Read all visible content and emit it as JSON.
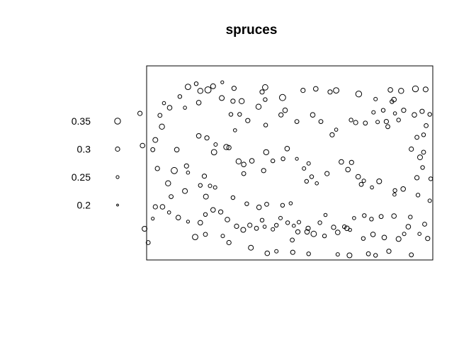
{
  "chart_data": {
    "type": "scatter",
    "title": "spruces",
    "xlim": [
      0,
      56
    ],
    "ylim": [
      0,
      38
    ],
    "stroke_color": "#000000",
    "background": "#ffffff",
    "legend": {
      "placement": "left",
      "entries": [
        {
          "label": "0.35",
          "value": 0.35
        },
        {
          "label": "0.3",
          "value": 0.3
        },
        {
          "label": "0.25",
          "value": 0.25
        },
        {
          "label": "0.2",
          "value": 0.2
        }
      ]
    },
    "points": [
      [
        9.7,
        34.5,
        0.28
      ],
      [
        10.5,
        33.1,
        0.33
      ],
      [
        12.0,
        33.3,
        0.36
      ],
      [
        13.0,
        34.0,
        0.32
      ],
      [
        14.8,
        34.8,
        0.25
      ],
      [
        17.1,
        33.6,
        0.3
      ],
      [
        18.6,
        31.1,
        0.33
      ],
      [
        22.6,
        32.9,
        0.3
      ],
      [
        23.2,
        33.8,
        0.34
      ],
      [
        26.6,
        31.8,
        0.36
      ],
      [
        30.6,
        33.2,
        0.3
      ],
      [
        33.1,
        33.5,
        0.31
      ],
      [
        35.9,
        32.9,
        0.3
      ],
      [
        37.1,
        33.2,
        0.34
      ],
      [
        41.5,
        32.5,
        0.35
      ],
      [
        6.5,
        32.0,
        0.28
      ],
      [
        8.1,
        33.9,
        0.34
      ],
      [
        10.2,
        30.8,
        0.31
      ],
      [
        14.7,
        31.7,
        0.32
      ],
      [
        16.9,
        31.1,
        0.3
      ],
      [
        16.5,
        28.5,
        0.28
      ],
      [
        18.2,
        28.5,
        0.28
      ],
      [
        19.8,
        27.3,
        0.3
      ],
      [
        21.9,
        30.0,
        0.33
      ],
      [
        23.2,
        31.4,
        0.28
      ],
      [
        23.3,
        26.4,
        0.28
      ],
      [
        27.1,
        29.3,
        0.31
      ],
      [
        26.3,
        28.4,
        0.3
      ],
      [
        29.4,
        27.1,
        0.29
      ],
      [
        32.5,
        28.4,
        0.31
      ],
      [
        34.1,
        27.1,
        0.29
      ],
      [
        36.3,
        24.5,
        0.3
      ],
      [
        37.1,
        25.5,
        0.26
      ],
      [
        40.9,
        26.9,
        0.3
      ],
      [
        42.8,
        26.8,
        0.29
      ],
      [
        47.7,
        33.3,
        0.31
      ],
      [
        48.4,
        31.4,
        0.31
      ],
      [
        49.8,
        33.1,
        0.33
      ],
      [
        52.6,
        33.5,
        0.35
      ],
      [
        54.6,
        33.4,
        0.32
      ],
      [
        53.9,
        29.1,
        0.3
      ],
      [
        52.4,
        28.4,
        0.31
      ],
      [
        55.4,
        28.5,
        0.28
      ],
      [
        54.7,
        26.3,
        0.29
      ],
      [
        47.2,
        26.1,
        0.29
      ],
      [
        46.3,
        29.3,
        0.28
      ],
      [
        46.9,
        27.1,
        0.3
      ],
      [
        48.6,
        28.7,
        0.26
      ],
      [
        50.3,
        29.3,
        0.3
      ],
      [
        48.0,
        31.0,
        0.28
      ],
      [
        44.4,
        28.9,
        0.27
      ],
      [
        45.2,
        27.0,
        0.27
      ],
      [
        40.0,
        27.4,
        0.28
      ],
      [
        44.8,
        31.5,
        0.27
      ],
      [
        49.3,
        27.4,
        0.28
      ],
      [
        4.5,
        29.8,
        0.31
      ],
      [
        2.6,
        28.3,
        0.29
      ],
      [
        3.0,
        26.1,
        0.33
      ],
      [
        3.4,
        30.7,
        0.26
      ],
      [
        7.5,
        29.8,
        0.26
      ],
      [
        -1.3,
        28.7,
        0.3
      ],
      [
        -0.8,
        22.4,
        0.31
      ],
      [
        1.7,
        23.5,
        0.32
      ],
      [
        1.2,
        21.6,
        0.29
      ],
      [
        2.1,
        17.9,
        0.3
      ],
      [
        4.2,
        15.0,
        0.33
      ],
      [
        5.4,
        17.5,
        0.36
      ],
      [
        7.8,
        18.4,
        0.3
      ],
      [
        8.1,
        17.1,
        0.26
      ],
      [
        11.6,
        12.4,
        0.32
      ],
      [
        12.4,
        14.5,
        0.27
      ],
      [
        13.4,
        14.2,
        0.27
      ],
      [
        13.2,
        21.1,
        0.34
      ],
      [
        16.1,
        22.0,
        0.3
      ],
      [
        17.3,
        25.4,
        0.26
      ],
      [
        18.0,
        19.3,
        0.33
      ],
      [
        19.0,
        18.7,
        0.31
      ],
      [
        19.0,
        16.9,
        0.29
      ],
      [
        20.6,
        19.4,
        0.31
      ],
      [
        22.9,
        17.5,
        0.3
      ],
      [
        23.4,
        21.1,
        0.33
      ],
      [
        24.7,
        19.4,
        0.28
      ],
      [
        26.7,
        19.8,
        0.28
      ],
      [
        27.5,
        21.8,
        0.31
      ],
      [
        29.4,
        19.8,
        0.25
      ],
      [
        30.8,
        17.9,
        0.27
      ],
      [
        31.7,
        18.9,
        0.27
      ],
      [
        31.3,
        15.4,
        0.28
      ],
      [
        32.3,
        16.3,
        0.28
      ],
      [
        33.3,
        15.0,
        0.26
      ],
      [
        35.3,
        16.9,
        0.3
      ],
      [
        38.1,
        19.2,
        0.31
      ],
      [
        39.4,
        17.7,
        0.31
      ],
      [
        40.1,
        19.1,
        0.3
      ],
      [
        41.4,
        16.3,
        0.31
      ],
      [
        42.0,
        14.8,
        0.29
      ],
      [
        42.5,
        15.5,
        0.27
      ],
      [
        44.1,
        14.2,
        0.26
      ],
      [
        45.5,
        15.4,
        0.32
      ],
      [
        48.6,
        13.6,
        0.28
      ],
      [
        48.5,
        12.8,
        0.26
      ],
      [
        50.2,
        13.9,
        0.31
      ],
      [
        52.9,
        16.1,
        0.3
      ],
      [
        54.0,
        18.1,
        0.28
      ],
      [
        55.6,
        15.9,
        0.28
      ],
      [
        53.5,
        20.1,
        0.32
      ],
      [
        54.2,
        21.1,
        0.29
      ],
      [
        51.8,
        21.7,
        0.3
      ],
      [
        52.9,
        24.0,
        0.29
      ],
      [
        54.2,
        24.5,
        0.28
      ],
      [
        53.1,
        12.7,
        0.28
      ],
      [
        55.4,
        11.6,
        0.27
      ],
      [
        51.6,
        8.4,
        0.28
      ],
      [
        48.4,
        8.6,
        0.31
      ],
      [
        45.9,
        8.5,
        0.29
      ],
      [
        44.0,
        8.0,
        0.28
      ],
      [
        42.6,
        8.7,
        0.28
      ],
      [
        40.6,
        8.2,
        0.26
      ],
      [
        38.7,
        6.5,
        0.28
      ],
      [
        36.6,
        6.4,
        0.3
      ],
      [
        35.0,
        8.8,
        0.26
      ],
      [
        33.9,
        7.3,
        0.28
      ],
      [
        31.6,
        6.2,
        0.3
      ],
      [
        29.8,
        7.4,
        0.27
      ],
      [
        28.8,
        6.7,
        0.26
      ],
      [
        27.6,
        7.3,
        0.28
      ],
      [
        26.2,
        8.2,
        0.27
      ],
      [
        25.4,
        6.8,
        0.28
      ],
      [
        24.7,
        6.0,
        0.27
      ],
      [
        23.1,
        6.5,
        0.26
      ],
      [
        22.6,
        7.8,
        0.28
      ],
      [
        21.5,
        6.2,
        0.29
      ],
      [
        20.2,
        6.8,
        0.3
      ],
      [
        18.9,
        5.9,
        0.32
      ],
      [
        17.6,
        6.6,
        0.3
      ],
      [
        15.8,
        7.9,
        0.31
      ],
      [
        14.5,
        9.4,
        0.3
      ],
      [
        13.0,
        9.8,
        0.31
      ],
      [
        11.5,
        8.9,
        0.28
      ],
      [
        10.5,
        7.3,
        0.31
      ],
      [
        8.1,
        7.5,
        0.25
      ],
      [
        6.2,
        8.3,
        0.31
      ],
      [
        4.4,
        9.3,
        0.26
      ],
      [
        3.1,
        10.4,
        0.31
      ],
      [
        1.7,
        10.4,
        0.3
      ],
      [
        1.2,
        8.1,
        0.25
      ],
      [
        -0.4,
        6.1,
        0.32
      ],
      [
        0.3,
        3.4,
        0.29
      ],
      [
        9.5,
        4.5,
        0.34
      ],
      [
        11.5,
        5.0,
        0.29
      ],
      [
        14.9,
        4.7,
        0.27
      ],
      [
        16.1,
        3.4,
        0.3
      ],
      [
        20.4,
        2.4,
        0.32
      ],
      [
        23.6,
        1.3,
        0.31
      ],
      [
        25.4,
        1.7,
        0.27
      ],
      [
        28.6,
        1.5,
        0.3
      ],
      [
        31.7,
        1.2,
        0.28
      ],
      [
        37.4,
        1.1,
        0.27
      ],
      [
        39.7,
        0.9,
        0.32
      ],
      [
        43.4,
        1.2,
        0.29
      ],
      [
        44.8,
        0.9,
        0.28
      ],
      [
        47.4,
        1.7,
        0.3
      ],
      [
        51.8,
        1.0,
        0.29
      ],
      [
        55.0,
        4.2,
        0.3
      ],
      [
        53.4,
        5.1,
        0.26
      ],
      [
        54.4,
        7.0,
        0.29
      ],
      [
        51.2,
        6.5,
        0.31
      ],
      [
        50.4,
        5.1,
        0.27
      ],
      [
        49.3,
        4.1,
        0.32
      ],
      [
        46.5,
        4.4,
        0.31
      ],
      [
        44.3,
        5.0,
        0.31
      ],
      [
        42.4,
        4.2,
        0.28
      ],
      [
        39.8,
        5.9,
        0.26
      ],
      [
        39.2,
        6.2,
        0.31
      ],
      [
        37.4,
        5.4,
        0.31
      ],
      [
        34.8,
        4.7,
        0.28
      ],
      [
        32.7,
        5.1,
        0.34
      ],
      [
        31.4,
        5.5,
        0.31
      ],
      [
        29.6,
        5.5,
        0.3
      ],
      [
        28.5,
        3.9,
        0.29
      ],
      [
        10.2,
        24.3,
        0.31
      ],
      [
        11.8,
        23.9,
        0.3
      ],
      [
        13.5,
        22.6,
        0.27
      ],
      [
        15.6,
        22.1,
        0.33
      ],
      [
        5.9,
        21.6,
        0.31
      ],
      [
        11.3,
        16.4,
        0.3
      ],
      [
        10.5,
        14.6,
        0.28
      ],
      [
        7.5,
        13.5,
        0.32
      ],
      [
        4.8,
        12.4,
        0.29
      ],
      [
        16.9,
        12.2,
        0.28
      ],
      [
        19.6,
        11.0,
        0.28
      ],
      [
        22.0,
        10.3,
        0.31
      ],
      [
        23.5,
        10.9,
        0.29
      ],
      [
        26.6,
        10.7,
        0.28
      ],
      [
        28.2,
        11.1,
        0.26
      ]
    ]
  }
}
